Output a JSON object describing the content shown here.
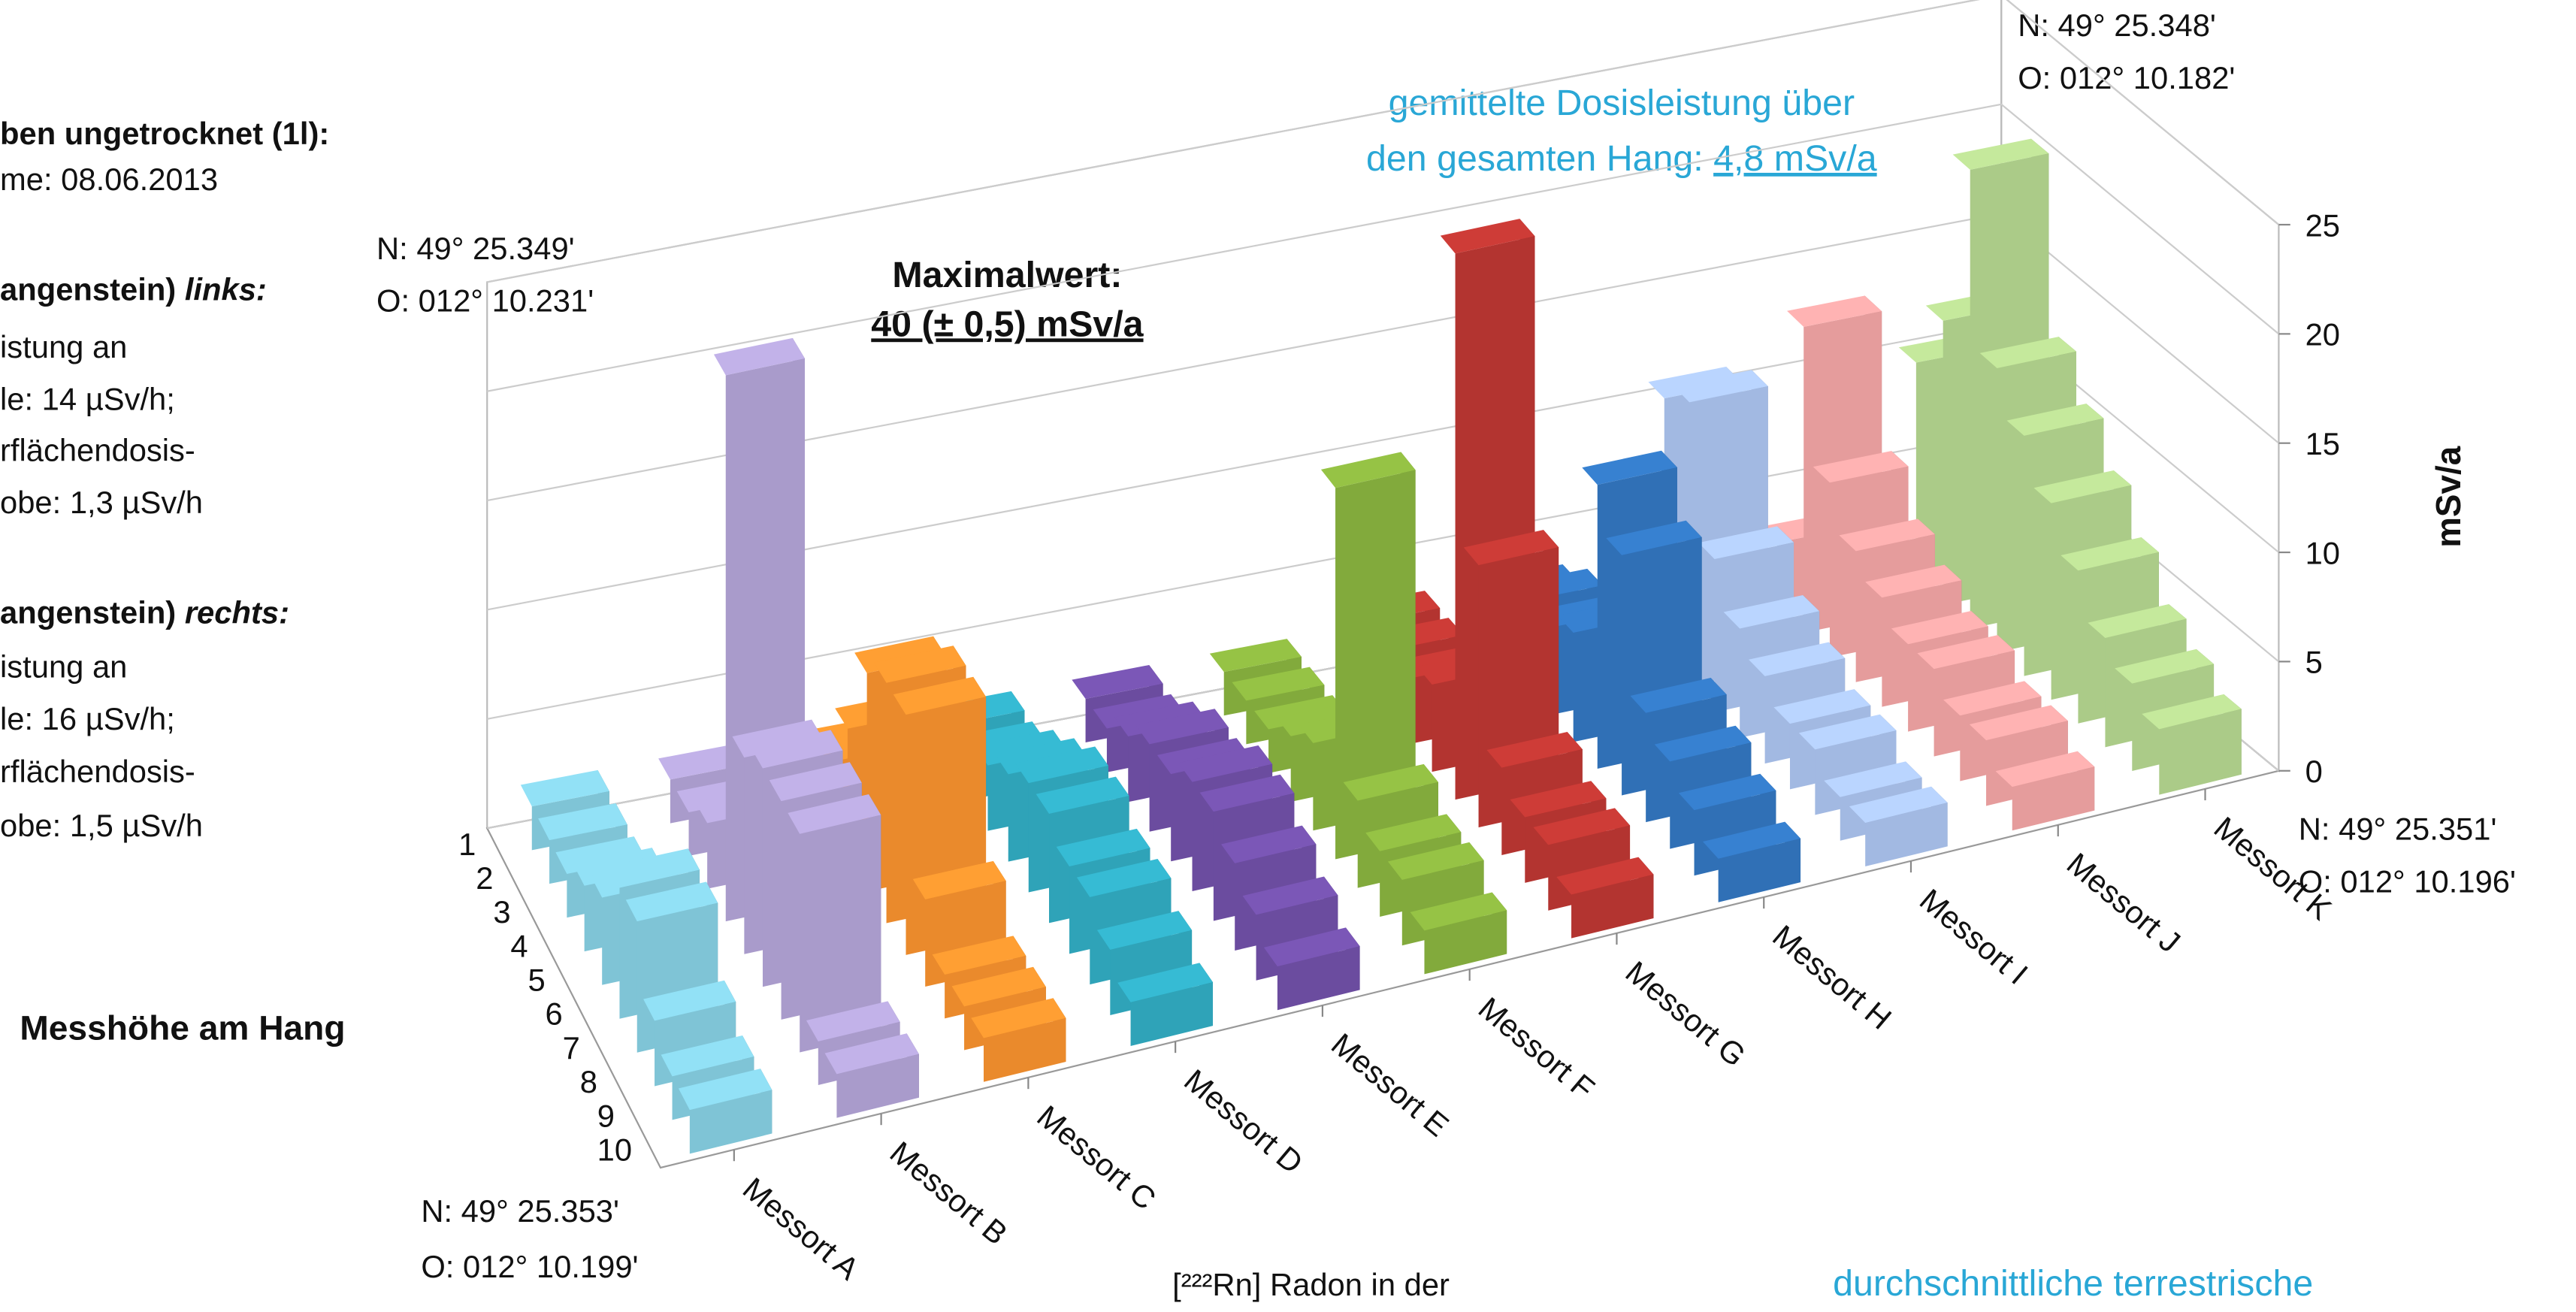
{
  "chart_data": {
    "type": "bar3d",
    "y_label": "mSv/a",
    "depth_label": "Messhöhe am Hang",
    "categories": [
      "1",
      "2",
      "3",
      "4",
      "5",
      "6",
      "7",
      "8",
      "9",
      "10"
    ],
    "ylim": [
      0,
      25
    ],
    "yticks": [
      0,
      5,
      10,
      15,
      20,
      25
    ],
    "grid": true,
    "series": [
      {
        "name": "Messort A",
        "color": "#7fc4d6",
        "values": [
          2,
          2,
          2,
          3,
          4,
          6,
          6,
          3,
          2,
          2
        ]
      },
      {
        "name": "Messort B",
        "color": "#a99bcb",
        "values": [
          2,
          2,
          3,
          25,
          9,
          10,
          10,
          10,
          2,
          2
        ]
      },
      {
        "name": "Messort C",
        "color": "#ea8a2c",
        "values": [
          2,
          3,
          6,
          10,
          11,
          11,
          4,
          2,
          2,
          2
        ]
      },
      {
        "name": "Messort D",
        "color": "#2fa3b8",
        "values": [
          2,
          2,
          3,
          4,
          5,
          5,
          4,
          4,
          3,
          2
        ]
      },
      {
        "name": "Messort E",
        "color": "#6b4c9f",
        "values": [
          2,
          2,
          3,
          4,
          4,
          5,
          5,
          4,
          3,
          2
        ]
      },
      {
        "name": "Messort F",
        "color": "#82aa3c",
        "values": [
          2,
          2,
          2,
          3,
          4,
          17,
          4,
          3,
          3,
          2
        ]
      },
      {
        "name": "Messort G",
        "color": "#b33430",
        "values": [
          3,
          3,
          3,
          4,
          25,
          12,
          4,
          3,
          3,
          2
        ]
      },
      {
        "name": "Messort H",
        "color": "#3070b6",
        "values": [
          3,
          4,
          4,
          5,
          13,
          11,
          5,
          4,
          3,
          2
        ]
      },
      {
        "name": "Messort I",
        "color": "#a2b9e2",
        "values": [
          5,
          12,
          13,
          7,
          5,
          4,
          3,
          3,
          2,
          2
        ]
      },
      {
        "name": "Messort J",
        "color": "#e59c9c",
        "values": [
          3,
          14,
          8,
          6,
          5,
          4,
          4,
          3,
          3,
          2
        ]
      },
      {
        "name": "Messort K",
        "color": "#abcb88",
        "values": [
          10,
          13,
          21,
          13,
          11,
          9,
          7,
          5,
          4,
          3
        ]
      }
    ],
    "left_notes": [
      "ben ungetrocknet (1l):",
      "me: 08.06.2013",
      "angenstein) ",
      "links:",
      "istung an",
      "le: 14 µSv/h;",
      "rflächendosis-",
      "obe: 1,3 µSv/h",
      "angenstein) ",
      "rechts:",
      "istung an",
      "le: 16 µSv/h;",
      "rflächendosis-",
      "obe: 1,5 µSv/h"
    ],
    "coordinates": [
      [
        "N: 49° 25.349'",
        "O: 012° 10.231'"
      ],
      [
        "N: 49° 25.348'",
        "O: 012° 10.182'"
      ],
      [
        "N: 49° 25.351'",
        "O: 012° 10.196'"
      ],
      [
        "N: 49° 25.353'",
        "O: 012° 10.199'"
      ]
    ],
    "mean_note": [
      "gemittelte Dosisleistung über",
      "den gesamten Hang: ",
      "4,8 mSv/a"
    ],
    "max_note": [
      "Maximalwert:",
      "40 (± 0,5) mSv/a"
    ],
    "bottom_notes": [
      "[²²²Rn] Radon in der",
      "durchschnittliche terrestrische"
    ]
  }
}
